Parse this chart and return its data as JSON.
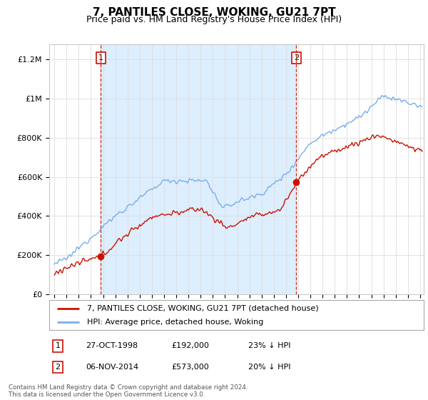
{
  "title": "7, PANTILES CLOSE, WOKING, GU21 7PT",
  "subtitle": "Price paid vs. HM Land Registry's House Price Index (HPI)",
  "ylabel_ticks": [
    "£0",
    "£200K",
    "£400K",
    "£600K",
    "£800K",
    "£1M",
    "£1.2M"
  ],
  "ytick_values": [
    0,
    200000,
    400000,
    600000,
    800000,
    1000000,
    1200000
  ],
  "ylim": [
    0,
    1280000
  ],
  "xlim_start": 1994.58,
  "xlim_end": 2025.3,
  "hpi_color": "#7aaee8",
  "price_color": "#cc1100",
  "vline_color": "#cc1100",
  "shade_color": "#ddeeff",
  "sale1_x": 1998.82,
  "sale1_y": 192000,
  "sale2_x": 2014.85,
  "sale2_y": 573000,
  "legend_line1": "7, PANTILES CLOSE, WOKING, GU21 7PT (detached house)",
  "legend_line2": "HPI: Average price, detached house, Woking",
  "footnote": "Contains HM Land Registry data © Crown copyright and database right 2024.\nThis data is licensed under the Open Government Licence v3.0.",
  "table_rows": [
    [
      "1",
      "27-OCT-1998",
      "£192,000",
      "23% ↓ HPI"
    ],
    [
      "2",
      "06-NOV-2014",
      "£573,000",
      "20% ↓ HPI"
    ]
  ],
  "background_color": "#ffffff",
  "grid_color": "#dddddd",
  "title_fontsize": 11,
  "subtitle_fontsize": 9,
  "tick_fontsize": 8,
  "legend_fontsize": 8
}
